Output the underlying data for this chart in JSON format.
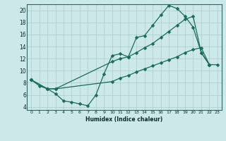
{
  "xlabel": "Humidex (Indice chaleur)",
  "bg_color": "#cce8e8",
  "grid_color": "#aacccc",
  "line_color": "#1a6b5a",
  "xlim": [
    -0.5,
    23.5
  ],
  "ylim": [
    3.5,
    21.0
  ],
  "xticks": [
    0,
    1,
    2,
    3,
    4,
    5,
    6,
    7,
    8,
    9,
    10,
    11,
    12,
    13,
    14,
    15,
    16,
    17,
    18,
    19,
    20,
    21,
    22,
    23
  ],
  "yticks": [
    4,
    6,
    8,
    10,
    12,
    14,
    16,
    18,
    20
  ],
  "line1_x": [
    0,
    1,
    2,
    3,
    4,
    5,
    6,
    7,
    8,
    9,
    10,
    11,
    12,
    13,
    14,
    15,
    16,
    17,
    18,
    19,
    20,
    21,
    22
  ],
  "line1_y": [
    8.5,
    7.5,
    7.0,
    6.2,
    5.0,
    4.8,
    4.5,
    4.2,
    6.0,
    9.5,
    12.5,
    12.8,
    12.3,
    15.5,
    15.8,
    17.5,
    19.2,
    20.8,
    20.3,
    19.0,
    17.2,
    13.0,
    11.0
  ],
  "line2_x": [
    0,
    2,
    3,
    10,
    11,
    12,
    13,
    14,
    15,
    16,
    17,
    18,
    19,
    20,
    21,
    22
  ],
  "line2_y": [
    8.5,
    7.0,
    7.0,
    11.5,
    12.0,
    12.3,
    13.0,
    13.8,
    14.5,
    15.5,
    16.5,
    17.5,
    18.5,
    19.0,
    13.0,
    11.0
  ],
  "line3_x": [
    0,
    2,
    3,
    10,
    11,
    12,
    13,
    14,
    15,
    16,
    17,
    18,
    19,
    20,
    21,
    22,
    23
  ],
  "line3_y": [
    8.5,
    7.0,
    7.0,
    8.2,
    8.8,
    9.2,
    9.8,
    10.3,
    10.8,
    11.3,
    11.8,
    12.3,
    13.0,
    13.5,
    13.8,
    11.0,
    11.0
  ],
  "marker_size": 2.5,
  "line_width": 0.9
}
